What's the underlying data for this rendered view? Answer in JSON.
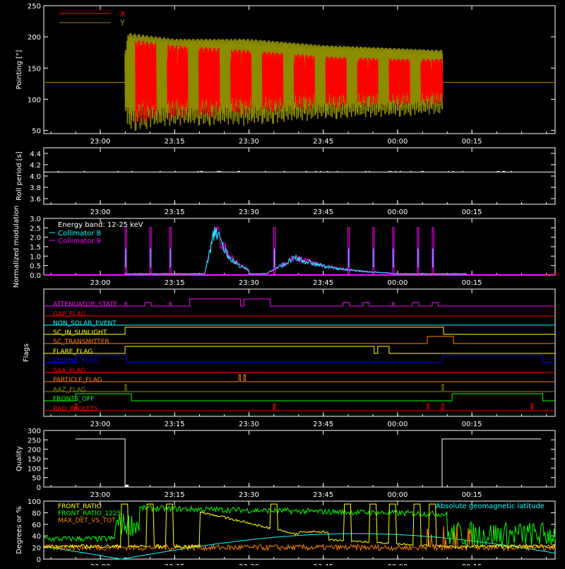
{
  "chart_data": [
    {
      "type": "line",
      "id": "pointing",
      "ylabel": "Pointing [\"]",
      "ylim": [
        45,
        250
      ],
      "yticks": [
        50,
        100,
        150,
        200,
        250
      ],
      "xticks": [
        "23:00",
        "23:15",
        "23:30",
        "23:45",
        "00:00",
        "00:15"
      ],
      "series": [
        {
          "name": "X",
          "color": "#ff0000",
          "baseline": 127,
          "envelope": [
            [
              23.09,
              35,
              70
            ],
            [
              23.25,
              30,
              60
            ],
            [
              23.5,
              28,
              52
            ],
            [
              23.75,
              22,
              42
            ],
            [
              24.0,
              20,
              38
            ],
            [
              24.15,
              18,
              38
            ]
          ]
        },
        {
          "name": "Y",
          "color": "#8c8c00",
          "baseline": 127,
          "envelope": [
            [
              23.09,
              55,
              80
            ],
            [
              23.25,
              58,
              70
            ],
            [
              23.5,
              55,
              70
            ],
            [
              23.75,
              48,
              60
            ],
            [
              24.0,
              45,
              55
            ],
            [
              24.15,
              40,
              52
            ]
          ]
        }
      ],
      "active_range": [
        "23:05",
        "00:09"
      ]
    },
    {
      "type": "line",
      "id": "roll",
      "ylabel": "Roll period [s]",
      "ylim": [
        3.5,
        4.5
      ],
      "yticks": [
        3.6,
        3.8,
        4.0,
        4.2,
        4.4
      ],
      "xticks": [
        "23:00",
        "23:15",
        "23:30",
        "23:45",
        "00:00",
        "00:15"
      ],
      "series": [
        {
          "color": "#ffffff",
          "value": 4.07
        }
      ]
    },
    {
      "type": "line",
      "id": "modulation",
      "ylabel": "Normalized modulation",
      "ylim": [
        0,
        3.0
      ],
      "yticks": [
        0.0,
        0.5,
        1.0,
        1.5,
        2.0,
        2.5,
        3.0
      ],
      "xticks": [
        "23:00",
        "23:15",
        "23:30",
        "23:45",
        "00:00",
        "00:15"
      ],
      "legend_title": "Energy band: 12-25 keV",
      "series": [
        {
          "name": "Collimator 8",
          "color": "#00ffff"
        },
        {
          "name": "Collimator 9",
          "color": "#ff00ff"
        }
      ],
      "spikes": [
        "23:05",
        "23:10",
        "23:14",
        "23:35",
        "23:50",
        "23:55",
        "23:59",
        "00:04",
        "00:07"
      ],
      "decays": [
        {
          "start": "23:21",
          "peak": 2.5,
          "end": "23:30"
        },
        {
          "start": "23:33",
          "peak": 0.9,
          "end": "23:59"
        }
      ]
    },
    {
      "type": "line",
      "id": "flags",
      "ylabel": "Flags",
      "xticks": [
        "23:00",
        "23:15",
        "23:30",
        "23:45",
        "00:00",
        "00:15"
      ],
      "rows": [
        {
          "name": "ATTENUATOR_STATE",
          "color": "#ff00ff"
        },
        {
          "name": "GAP_FLAG",
          "color": "#ff0000"
        },
        {
          "name": "NON_SOLAR_EVENT",
          "color": "#00ffff"
        },
        {
          "name": "SC_IN_SUNLIGHT",
          "color": "#ffff00"
        },
        {
          "name": "SC_TRANSMITTER",
          "color": "#ff8000"
        },
        {
          "name": "FLARE_FLAG",
          "color": "#ffff00"
        },
        {
          "name": "ECLIPSE_FLAG",
          "color": "#0000ff"
        },
        {
          "name": "SAA_FLAG",
          "color": "#ff0000"
        },
        {
          "name": "PARTICLE_FLAG",
          "color": "#ff8000"
        },
        {
          "name": "AAZ_FLAG",
          "color": "#8c8c00"
        },
        {
          "name": "FRONTS_OFF",
          "color": "#00ff00"
        },
        {
          "name": "BAD_PACKETS",
          "color": "#ff0000"
        }
      ]
    },
    {
      "type": "line",
      "id": "quality",
      "ylabel": "Quality",
      "ylim": [
        0,
        300
      ],
      "yticks": [
        0,
        50,
        100,
        150,
        200,
        250,
        300
      ],
      "xticks": [
        "23:00",
        "23:15",
        "23:30",
        "23:45",
        "00:00",
        "00:15"
      ],
      "series": [
        {
          "color": "#ffffff",
          "segments": [
            [
              "22:55",
              "23:05",
              255
            ],
            [
              "23:05",
              "00:09",
              0
            ],
            [
              "00:09",
              "00:29",
              255
            ]
          ]
        }
      ]
    },
    {
      "type": "line",
      "id": "ratios",
      "ylabel": "Degrees or %",
      "ylim": [
        0,
        100
      ],
      "yticks": [
        0,
        20,
        40,
        60,
        80,
        100
      ],
      "xticks": [
        "23:00",
        "23:15",
        "23:30",
        "23:45",
        "00:00",
        "00:15"
      ],
      "annotation": "Absolute geomagnetic latitude",
      "annotation_color": "#00ffff",
      "series": [
        {
          "name": "FRONT_RATIO",
          "color": "#ffff00"
        },
        {
          "name": "FRONT_RATIO_1225",
          "color": "#00ff00"
        },
        {
          "name": "MAX_DET_VS_TOT",
          "color": "#ff8000"
        }
      ]
    }
  ]
}
